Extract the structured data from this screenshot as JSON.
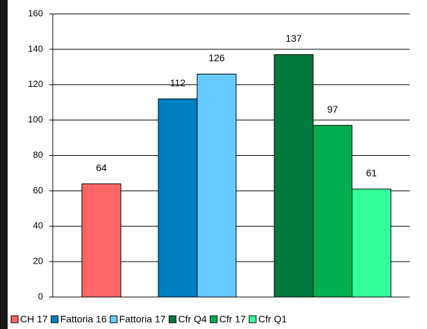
{
  "chart_data": {
    "type": "bar",
    "categories": [
      null,
      null,
      null
    ],
    "series": [
      {
        "name": "CH 17",
        "color": "#ff6666",
        "values": [
          64,
          null,
          null
        ]
      },
      {
        "name": "Fattoria 16",
        "color": "#0080c0",
        "values": [
          null,
          112,
          null
        ]
      },
      {
        "name": "Fattoria 17",
        "color": "#66ccff",
        "values": [
          null,
          126,
          null
        ]
      },
      {
        "name": "Cfr Q4",
        "color": "#007a3d",
        "values": [
          null,
          null,
          137
        ]
      },
      {
        "name": "Cfr 17",
        "color": "#00b050",
        "values": [
          null,
          null,
          97
        ]
      },
      {
        "name": "Cfr Q1",
        "color": "#33ff99",
        "values": [
          null,
          null,
          61
        ]
      }
    ],
    "ylim": [
      0,
      160
    ],
    "yticks": [
      0,
      20,
      40,
      60,
      80,
      100,
      120,
      140,
      160
    ],
    "grid": true,
    "legend": "bottom"
  }
}
